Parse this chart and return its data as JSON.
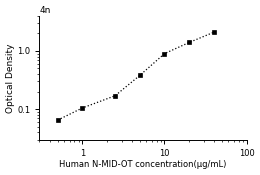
{
  "x_data": [
    0.5,
    1.0,
    2.5,
    5.0,
    10.0,
    20.0,
    40.0
  ],
  "y_data": [
    0.065,
    0.105,
    0.17,
    0.38,
    0.9,
    1.4,
    2.1
  ],
  "xlabel": "Human N-MID-OT concentration(μg/mL)",
  "ylabel": "Optical Density",
  "xlim": [
    0.3,
    100
  ],
  "ylim": [
    0.03,
    4
  ],
  "title_top": "4n",
  "marker": "s",
  "marker_color": "black",
  "marker_size": 3.5,
  "line_color": "black",
  "background_color": "#ffffff",
  "xlabel_fontsize": 6,
  "ylabel_fontsize": 6.5,
  "tick_fontsize": 6,
  "xticks_major": [
    1,
    10,
    100
  ],
  "yticks_major": [
    0.1,
    1
  ]
}
